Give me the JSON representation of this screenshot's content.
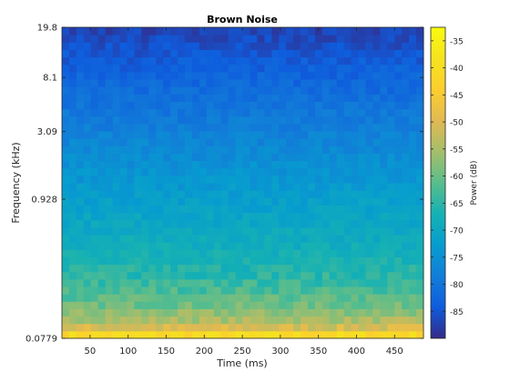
{
  "chart_data": {
    "type": "heatmap",
    "title": "Brown Noise",
    "xlabel": "Time (ms)",
    "ylabel": "Frequency (kHz)",
    "colorbar_label": "Power (dB)",
    "colormap": "parula",
    "x_ticks": [
      "50",
      "100",
      "150",
      "200",
      "250",
      "300",
      "350",
      "400",
      "450"
    ],
    "x_tick_values": [
      50,
      100,
      150,
      200,
      250,
      300,
      350,
      400,
      450
    ],
    "xlim": [
      13,
      488
    ],
    "y_scale": "log",
    "y_ticks": [
      "0.0779",
      "0.928",
      "3.09",
      "8.1",
      "19.8"
    ],
    "y_tick_values": [
      0.0779,
      0.928,
      3.09,
      8.1,
      19.8
    ],
    "ylim": [
      0.0779,
      19.8
    ],
    "colorbar_ticks": [
      "-35",
      "-40",
      "-45",
      "-50",
      "-55",
      "-60",
      "-65",
      "-70",
      "-75",
      "-80",
      "-85"
    ],
    "colorbar_tick_values": [
      -35,
      -40,
      -45,
      -50,
      -55,
      -60,
      -65,
      -70,
      -75,
      -80,
      -85
    ],
    "clim": [
      -90,
      -32.5
    ],
    "time_bins": 50,
    "freq_bins": 42,
    "power_profile": {
      "frequency_fraction": [
        0,
        0.03,
        0.1,
        0.2,
        0.3,
        0.45,
        0.6,
        0.75,
        0.9,
        1.0
      ],
      "power_db": [
        -41,
        -53,
        -60,
        -65.5,
        -68.5,
        -72,
        -76,
        -80,
        -84,
        -87
      ]
    },
    "colors": {
      "low": "#352a87",
      "mid": "#15b1b4",
      "high": "#f9fb0e"
    }
  }
}
